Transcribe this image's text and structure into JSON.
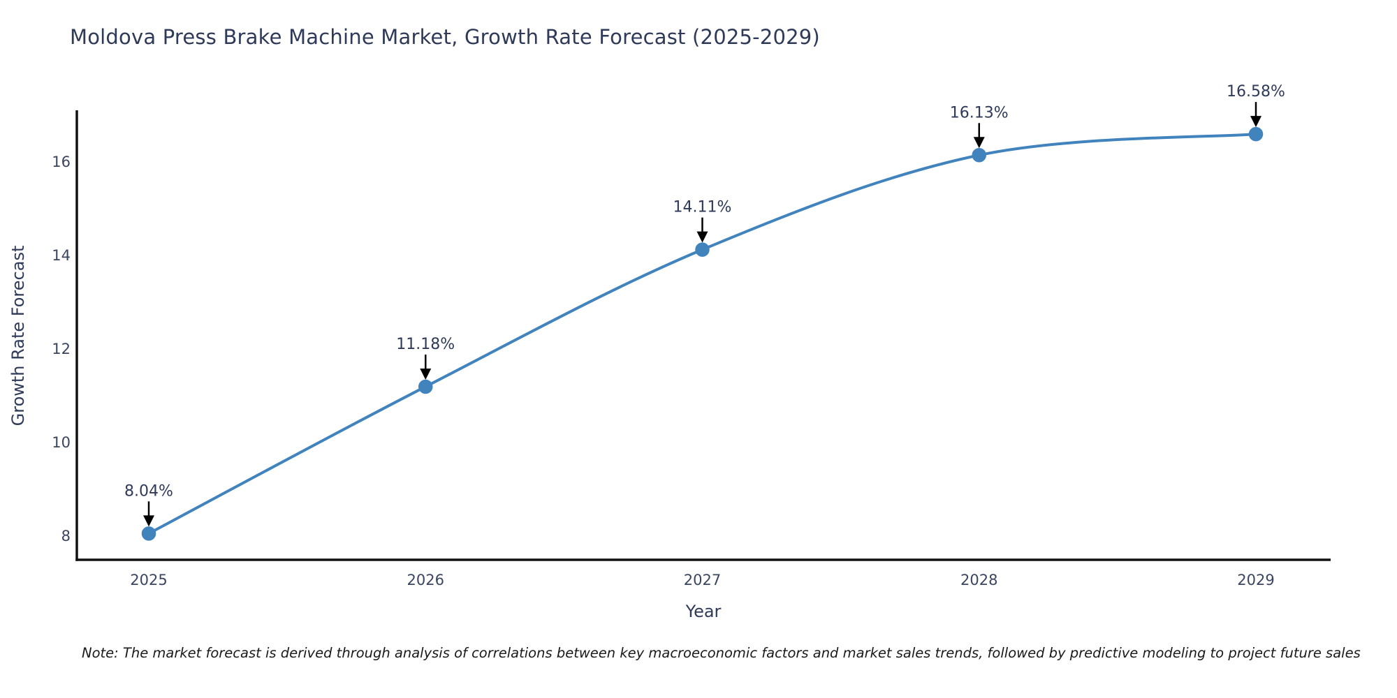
{
  "page": {
    "title": "Moldova Press Brake Machine Market, Growth Rate Forecast (2025-2029)",
    "note": "Note: The market forecast is derived through analysis of correlations between key macroeconomic factors and market sales trends, followed by predictive modeling to project future sales"
  },
  "chart_data": {
    "type": "line",
    "title": "Moldova Press Brake Machine Market, Growth Rate Forecast (2025-2029)",
    "xlabel": "Year",
    "ylabel": "Growth Rate Forecast",
    "categories": [
      "2025",
      "2026",
      "2027",
      "2028",
      "2029"
    ],
    "series": [
      {
        "name": "Growth Rate Forecast",
        "values": [
          8.04,
          11.18,
          14.11,
          16.13,
          16.58
        ],
        "point_labels": [
          "8.04%",
          "11.18%",
          "14.11%",
          "16.13%",
          "16.58%"
        ]
      }
    ],
    "yticks": [
      8,
      10,
      12,
      14,
      16
    ],
    "ylim": [
      7.45,
      17.1
    ],
    "grid": false,
    "legend": "none",
    "line_shape": "spline",
    "annotations_style": "label-with-down-arrow",
    "colors": {
      "line": "#4083bd",
      "marker": "#4083bd",
      "axis": "#111111",
      "title_text": "#2e3a58",
      "tick_text": "#3a4560",
      "annotation_text": "#2e3a58",
      "annotation_arrow": "#000000",
      "note_text": "#1a1a1a"
    }
  }
}
